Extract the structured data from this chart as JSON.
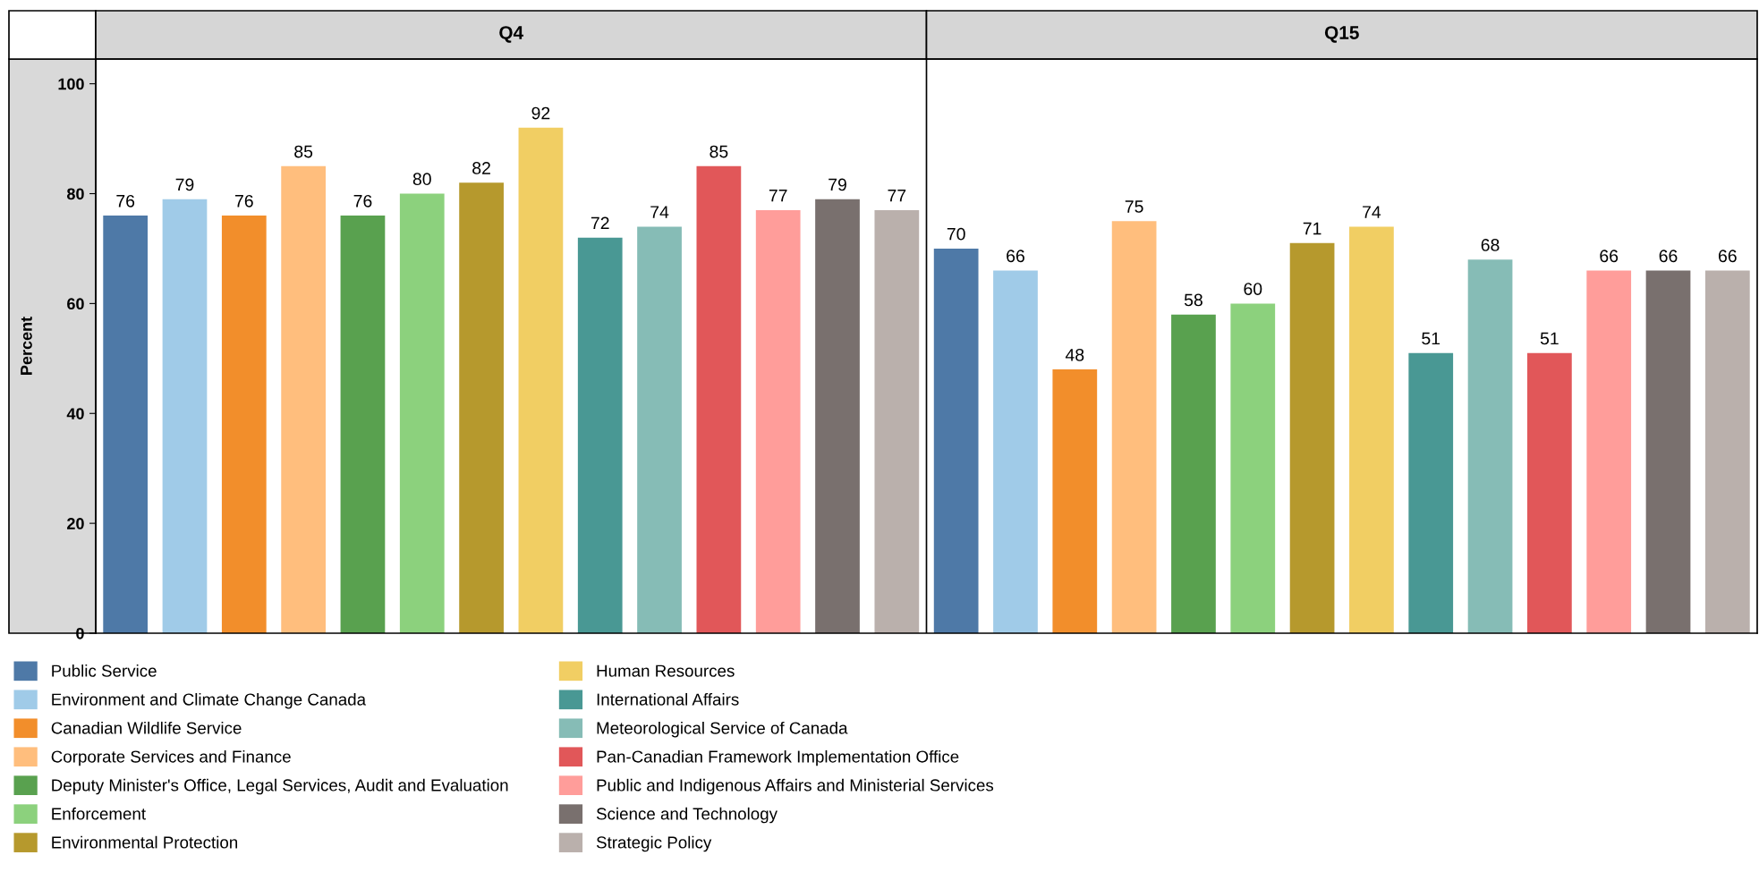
{
  "chart_data": {
    "type": "bar",
    "ylabel": "Percent",
    "categories": [
      "Q4",
      "Q15"
    ],
    "ylim": [
      0,
      104.5
    ],
    "yticks": [
      0,
      20,
      40,
      60,
      80,
      100
    ],
    "data_labels": true,
    "grid": false,
    "legend": "bottom",
    "series": [
      {
        "name": "Public Service",
        "color": "#4e79a7",
        "values": [
          76,
          70
        ]
      },
      {
        "name": "Environment and Climate Change Canada",
        "color": "#a0cbe8",
        "values": [
          79,
          66
        ]
      },
      {
        "name": "Canadian Wildlife Service",
        "color": "#f28e2b",
        "values": [
          76,
          48
        ]
      },
      {
        "name": "Corporate Services and Finance",
        "color": "#ffbe7d",
        "values": [
          85,
          75
        ]
      },
      {
        "name": "Deputy Minister's Office, Legal Services, Audit and Evaluation",
        "color": "#59a14f",
        "values": [
          76,
          58
        ]
      },
      {
        "name": "Enforcement",
        "color": "#8cd17d",
        "values": [
          80,
          60
        ]
      },
      {
        "name": "Environmental Protection",
        "color": "#b6992d",
        "values": [
          82,
          71
        ]
      },
      {
        "name": "Human Resources",
        "color": "#f1ce63",
        "values": [
          92,
          74
        ]
      },
      {
        "name": "International Affairs",
        "color": "#499894",
        "values": [
          72,
          51
        ]
      },
      {
        "name": "Meteorological Service of Canada",
        "color": "#86bcb6",
        "values": [
          74,
          68
        ]
      },
      {
        "name": "Pan-Canadian Framework Implementation Office",
        "color": "#e15759",
        "values": [
          85,
          51
        ]
      },
      {
        "name": "Public and Indigenous Affairs and Ministerial Services",
        "color": "#ff9d9a",
        "values": [
          77,
          66
        ]
      },
      {
        "name": "Science and Technology",
        "color": "#79706e",
        "values": [
          79,
          66
        ]
      },
      {
        "name": "Strategic Policy",
        "color": "#bab0ac",
        "values": [
          77,
          66
        ]
      }
    ]
  }
}
